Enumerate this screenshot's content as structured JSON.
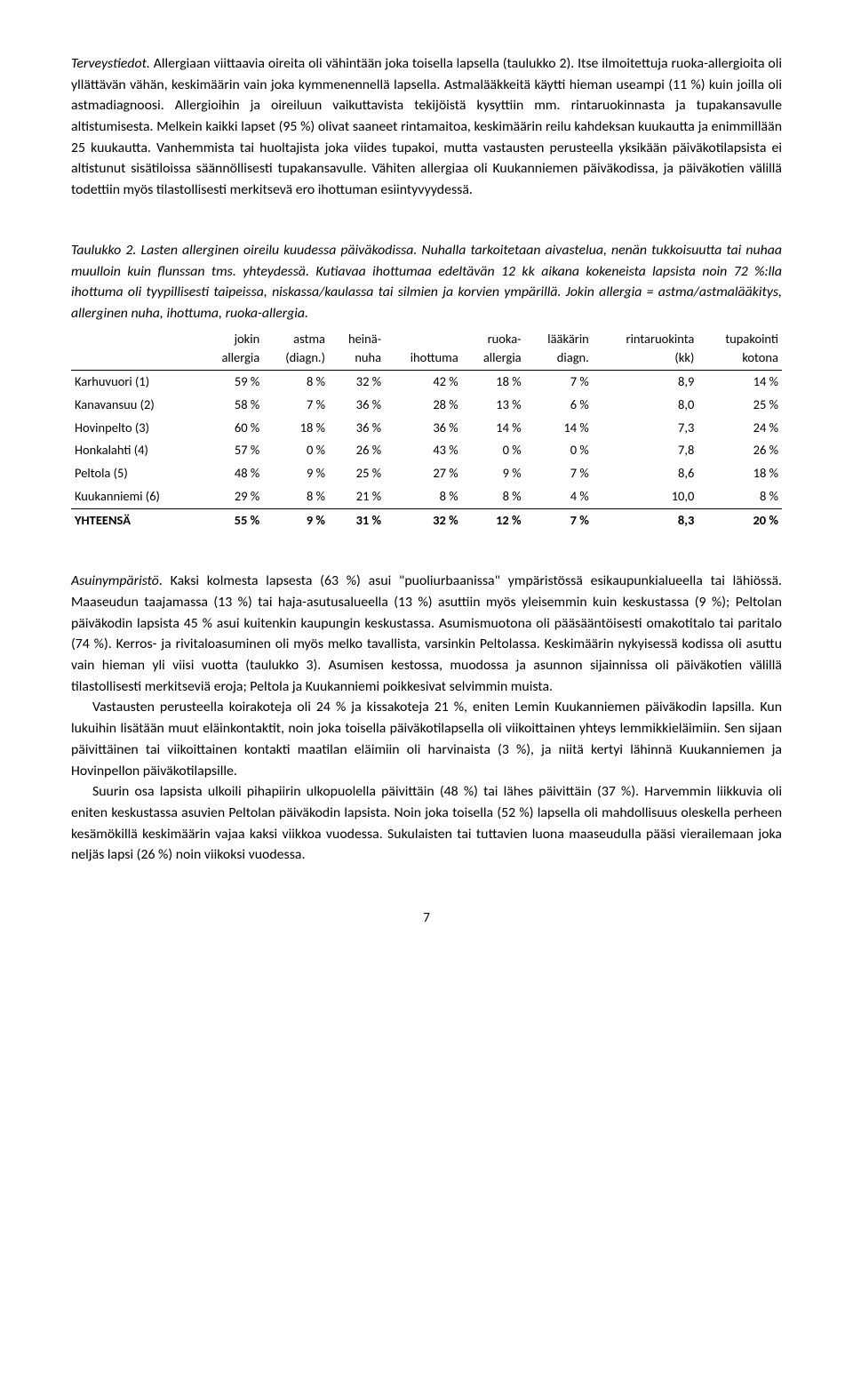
{
  "para1": {
    "lead": "Terveystiedot.",
    "rest": " Allergiaan viittaavia oireita oli vähintään joka toisella lapsella (taulukko 2). Itse ilmoitettuja ruoka-allergioita oli yllättävän vähän, keskimäärin vain joka kymmenennellä lapsella. Astmalääkkeitä käytti hieman useampi (11 %) kuin joilla oli astmadiagnoosi. Allergioihin ja oireiluun vaikuttavista tekijöistä kysyttiin mm. rintaruokinnasta ja tupakansavulle altistumisesta. Melkein kaikki lapset (95 %) olivat saaneet rintamaitoa, keskimäärin reilu kahdeksan kuukautta ja enimmillään 25 kuukautta. Vanhemmista tai huoltajista joka viides tupakoi, mutta vastausten perusteella yksikään päiväkotilapsista ei altistunut sisätiloissa säännöllisesti tupakansavulle. Vähiten allergiaa oli Kuukanniemen päiväkodissa, ja päiväkotien välillä todettiin myös tilastollisesti merkitsevä ero ihottuman esiintyvyydessä."
  },
  "caption": "Taulukko 2. Lasten allerginen oireilu kuudessa päiväkodissa. Nuhalla tarkoitetaan aivastelua, nenän tukkoisuutta tai nuhaa muulloin kuin flunssan tms. yhteydessä. Kutiavaa ihottumaa edeltävän 12 kk aikana kokeneista lapsista noin 72 %:lla ihottuma oli tyypillisesti taipeissa, niskassa/kaulassa tai silmien ja korvien ympärillä. Jokin allergia = astma/astmalääkitys, allerginen nuha, ihottuma, ruoka-allergia.",
  "table": {
    "headers": {
      "c0": "",
      "c1_a": "jokin",
      "c1_b": "allergia",
      "c2_a": "astma",
      "c2_b": "(diagn.)",
      "c3_a": "heinä-",
      "c3_b": "nuha",
      "c4_a": "ihottuma",
      "c4_b": "",
      "c5_a": "ruoka-",
      "c5_b": "allergia",
      "c6_a": "lääkärin",
      "c6_b": "diagn.",
      "c7_a": "rintaruokinta",
      "c7_b": "(kk)",
      "c8_a": "tupakointi",
      "c8_b": "kotona"
    },
    "rows": [
      {
        "name": "Karhuvuori (1)",
        "c1": "59 %",
        "c2": "8 %",
        "c3": "32 %",
        "c4": "42 %",
        "c5": "18 %",
        "c6": "7 %",
        "c7": "8,9",
        "c8": "14 %"
      },
      {
        "name": "Kanavansuu (2)",
        "c1": "58 %",
        "c2": "7 %",
        "c3": "36 %",
        "c4": "28 %",
        "c5": "13 %",
        "c6": "6 %",
        "c7": "8,0",
        "c8": "25 %"
      },
      {
        "name": "Hovinpelto (3)",
        "c1": "60 %",
        "c2": "18 %",
        "c3": "36 %",
        "c4": "36 %",
        "c5": "14 %",
        "c6": "14 %",
        "c7": "7,3",
        "c8": "24 %"
      },
      {
        "name": "Honkalahti (4)",
        "c1": "57 %",
        "c2": "0 %",
        "c3": "26 %",
        "c4": "43 %",
        "c5": "0 %",
        "c6": "0 %",
        "c7": "7,8",
        "c8": "26 %"
      },
      {
        "name": "Peltola (5)",
        "c1": "48 %",
        "c2": "9 %",
        "c3": "25 %",
        "c4": "27 %",
        "c5": "9 %",
        "c6": "7 %",
        "c7": "8,6",
        "c8": "18 %"
      },
      {
        "name": "Kuukanniemi (6)",
        "c1": "29 %",
        "c2": "8 %",
        "c3": "21 %",
        "c4": "8 %",
        "c5": "8 %",
        "c6": "4 %",
        "c7": "10,0",
        "c8": "8 %"
      }
    ],
    "total": {
      "name": "YHTEENSÄ",
      "c1": "55 %",
      "c2": "9 %",
      "c3": "31 %",
      "c4": "32 %",
      "c5": "12 %",
      "c6": "7 %",
      "c7": "8,3",
      "c8": "20 %"
    }
  },
  "para2": {
    "lead": "Asuinympäristö",
    "rest": ". Kaksi kolmesta lapsesta (63 %) asui \"puoliurbaanissa\" ympäristössä esikaupunkialueella tai lähiössä. Maaseudun taajamassa (13 %) tai haja-asutusalueella (13 %) asuttiin myös yleisemmin kuin keskustassa (9 %); Peltolan päiväkodin lapsista 45 % asui kuitenkin kaupungin keskustassa. Asumismuotona oli pääsääntöisesti omakotitalo tai paritalo (74 %). Kerros- ja rivitaloasuminen oli myös melko tavallista, varsinkin Peltolassa. Keskimäärin nykyisessä kodissa oli asuttu vain hieman yli viisi vuotta (taulukko 3). Asumisen kestossa, muodossa ja asunnon sijainnissa oli päiväkotien välillä tilastollisesti merkitseviä eroja; Peltola ja Kuukanniemi poikkesivat selvimmin muista."
  },
  "para3": "Vastausten perusteella koirakoteja oli 24 % ja kissakoteja 21 %, eniten Lemin Kuukanniemen päiväkodin lapsilla. Kun lukuihin lisätään muut eläinkontaktit, noin joka toisella päiväkotilapsella oli viikoittainen yhteys lemmikkieläimiin. Sen sijaan päivittäinen tai viikoittainen kontakti maatilan eläimiin oli harvinaista (3 %), ja niitä kertyi lähinnä Kuukanniemen ja Hovinpellon päiväkotilapsille.",
  "para4": "Suurin osa lapsista ulkoili pihapiirin ulkopuolella päivittäin (48 %) tai lähes päivittäin (37 %). Harvemmin liikkuvia oli eniten keskustassa asuvien Peltolan päiväkodin lapsista. Noin joka toisella (52 %) lapsella oli mahdollisuus oleskella perheen kesämökillä keskimäärin vajaa kaksi viikkoa vuodessa. Sukulaisten tai tuttavien luona maaseudulla pääsi vierailemaan joka neljäs lapsi (26 %) noin viikoksi vuodessa.",
  "pageNumber": "7"
}
